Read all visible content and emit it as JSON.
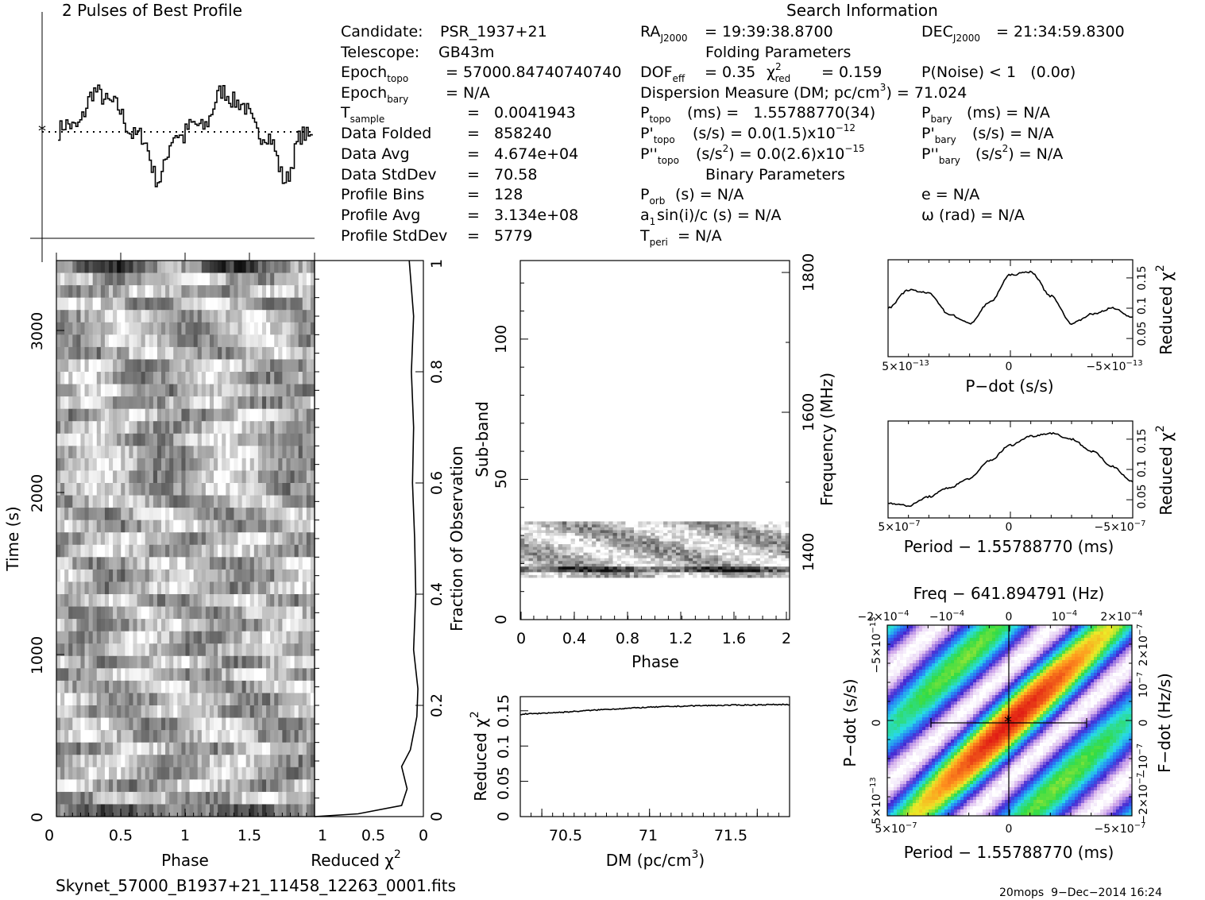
{
  "profile": {
    "title": "2 Pulses of Best Profile",
    "mean_marker": "*"
  },
  "search_info": {
    "title": "Search Information",
    "candidate_label": "Candidate:",
    "candidate": "PSR_1937+21",
    "telescope_label": "Telescope:",
    "telescope": "GB43m",
    "epoch_topo_label": "Epoch",
    "epoch_topo_sub": "topo",
    "epoch_topo": "= 57000.84740740740",
    "epoch_bary_label": "Epoch",
    "epoch_bary_sub": "bary",
    "epoch_bary": "= N/A",
    "tsample_label": "T",
    "tsample_sub": "sample",
    "tsample": "=   0.0041943",
    "data_folded_label": "Data Folded",
    "data_folded": "=   858240",
    "data_avg_label": "Data Avg",
    "data_avg": "=   4.674e+04",
    "data_std_label": "Data StdDev",
    "data_std": "=   70.58",
    "profile_bins_label": "Profile Bins",
    "profile_bins": "=   128",
    "profile_avg_label": "Profile Avg",
    "profile_avg": "=   3.134e+08",
    "profile_std_label": "Profile StdDev",
    "profile_std": "=   5779",
    "ra_label": "RA",
    "ra_sub": "J2000",
    "ra": "= 19:39:38.8700",
    "dec_label": "DEC",
    "dec_sub": "J2000",
    "dec": "= 21:34:59.8300",
    "folding_title": "Folding Parameters",
    "dof_label": "DOF",
    "dof_sub": "eff",
    "dof": "= 0.35",
    "chi2_label": "χ",
    "chi2_sup": "2",
    "chi2_sub": "red",
    "chi2": "= 0.159",
    "pnoise": "P(Noise) < 1   (0.0σ)",
    "dm_line": "Dispersion Measure (DM; pc/cm",
    "dm_sup": "3",
    "dm_value": ") = 71.024",
    "ptopo_label": "P",
    "ptopo_sub": "topo",
    "ptopo": "(ms) =   1.55788770(34)",
    "pbary_label": "P",
    "pbary_sub": "bary",
    "pbary": "(ms) = N/A",
    "pdtopo_label": "P'",
    "pdtopo_sub": "topo",
    "pdtopo": "(s/s) = 0.0(1.5)x10",
    "pdtopo_exp": "−12",
    "pdbary_label": "P'",
    "pdbary_sub": "bary",
    "pdbary": "(s/s) = N/A",
    "pddtopo_label": "P''",
    "pddtopo_sub": "topo",
    "pddtopo": "(s/s",
    "pddtopo_sup": "2",
    "pddtopo_rest": ") = 0.0(2.6)x10",
    "pddtopo_exp": "−15",
    "pddbary_label": "P''",
    "pddbary_sub": "bary",
    "pddbary": "(s/s",
    "pddbary_sup": "2",
    "pddbary_rest": ") = N/A",
    "binary_title": "Binary Parameters",
    "porb_label": "P",
    "porb_sub": "orb",
    "porb": "(s) = N/A",
    "e": "e = N/A",
    "a1_label": "a",
    "a1_sub": "1",
    "a1": "sin(i)/c (s) = N/A",
    "omega": "ω (rad) = N/A",
    "tperi_label": "T",
    "tperi_sub": "peri",
    "tperi": "= N/A"
  },
  "phase_time": {
    "xlabel": "Phase",
    "ylabel": "Time (s)",
    "xticks": [
      "0",
      "0.5",
      "1",
      "1.5"
    ],
    "yticks": [
      "0",
      "1000",
      "2000",
      "3000"
    ],
    "rows": 45,
    "bins": 64
  },
  "redchi_time": {
    "xlabel": "Reduced χ",
    "xlabel_sup": "2",
    "xticks": [
      "1",
      "0.5",
      "0"
    ],
    "ylabel_right": "Fraction of Observation",
    "yticks": [
      "0",
      "0.2",
      "0.4",
      "0.6",
      "0.8",
      "1"
    ]
  },
  "subband": {
    "xlabel": "Phase",
    "ylabel": "Sub-band",
    "xticks": [
      "0",
      "0.4",
      "0.8",
      "1.2",
      "1.6",
      "2"
    ],
    "yticks": [
      "0",
      "50",
      "100"
    ],
    "ylabel_right": "Frequency (MHz)",
    "freq_ticks": [
      "1400",
      "1600",
      "1800"
    ]
  },
  "dm_plot": {
    "xlabel": "DM (pc/cm",
    "xlabel_sup": "3",
    "xlabel_end": ")",
    "ylabel": "Reduced χ",
    "ylabel_sup": "2",
    "xticks": [
      "70.5",
      "71",
      "71.5"
    ],
    "yticks": [
      "0",
      "0.05",
      "0.1",
      "0.15"
    ]
  },
  "pdot_plot": {
    "xlabel": "P−dot (s/s)",
    "ylabel": "Reduced χ",
    "ylabel_sup": "2",
    "xticks": [
      "5×10",
      "0",
      "−5×10"
    ],
    "xtick_exp": "−13",
    "yticks": [
      "0.05",
      "0.1",
      "0.15"
    ]
  },
  "period_plot": {
    "xlabel": "Period − 1.55788770 (ms)",
    "ylabel": "Reduced χ",
    "ylabel_sup": "2",
    "xticks": [
      "5×10",
      "0",
      "−5×10"
    ],
    "xtick_exp": "−7",
    "yticks": [
      "0.05",
      "0.1",
      "0.15"
    ]
  },
  "pp_plane": {
    "title": "Freq − 641.894791 (Hz)",
    "top_ticks": [
      "−2×10",
      "−10",
      "0",
      "10",
      "2×10"
    ],
    "top_exp": "−4",
    "xlabel": "Period − 1.55788770 (ms)",
    "xticks": [
      "5×10",
      "0",
      "−5×10"
    ],
    "xtick_exp": "−7",
    "ylabel": "P−dot (s/s)",
    "yticks": [
      "−5×10",
      "0",
      "5×10"
    ],
    "ytick_exp": "−13",
    "ylabel_right": "F−dot (Hz/s)",
    "right_ticks": [
      "2×10",
      "10",
      "0",
      "−10",
      "−2×10"
    ],
    "right_exp": "−7"
  },
  "footer": {
    "filename": "Skynet_57000_B1937+21_11458_12263_0001.fits",
    "stamp": "20mops  9−Dec−2014 16:24"
  },
  "chart_data": [
    {
      "type": "line",
      "title": "2 Pulses of Best Profile",
      "xlabel": "",
      "ylabel": "",
      "x_range": [
        0,
        2
      ],
      "note_mean_line": "dotted"
    },
    {
      "type": "heatmap",
      "xlabel": "Phase",
      "ylabel": "Time (s)",
      "x_range": [
        0,
        2
      ],
      "y_range": [
        0,
        3400
      ]
    },
    {
      "type": "line",
      "xlabel": "Reduced χ2",
      "ylabel": "Fraction of Observation",
      "x_range": [
        1,
        0
      ],
      "y_range": [
        0,
        1
      ],
      "points": [
        [
          1.0,
          0.0
        ],
        [
          0.6,
          0.005
        ],
        [
          0.2,
          0.02
        ],
        [
          0.15,
          0.05
        ],
        [
          0.2,
          0.09
        ],
        [
          0.12,
          0.12
        ],
        [
          0.06,
          0.18
        ],
        [
          0.05,
          0.23
        ],
        [
          0.09,
          0.3
        ],
        [
          0.07,
          0.4
        ],
        [
          0.08,
          0.5
        ],
        [
          0.1,
          0.6
        ],
        [
          0.09,
          0.7
        ],
        [
          0.11,
          0.8
        ],
        [
          0.09,
          0.9
        ],
        [
          0.13,
          1.0
        ]
      ]
    },
    {
      "type": "heatmap",
      "xlabel": "Phase",
      "ylabel": "Sub-band",
      "x_range": [
        0,
        2
      ],
      "y_range": [
        0,
        128
      ],
      "active_subbands": [
        15,
        35
      ],
      "freq_axis": {
        "label": "Frequency (MHz)",
        "ticks": [
          1400,
          1600,
          1800
        ]
      }
    },
    {
      "type": "line",
      "xlabel": "DM (pc/cm3)",
      "ylabel": "Reduced χ2",
      "x_range": [
        70.4,
        71.65
      ],
      "y_range": [
        0,
        0.17
      ],
      "x": [
        70.4,
        70.6,
        70.8,
        71.0,
        71.2,
        71.4,
        71.65
      ],
      "y": [
        0.145,
        0.148,
        0.152,
        0.155,
        0.157,
        0.158,
        0.159
      ]
    },
    {
      "type": "line",
      "xlabel": "P-dot (s/s)",
      "ylabel": "Reduced χ2",
      "x_range": [
        6e-13,
        -6e-13
      ],
      "y_range": [
        0.02,
        0.18
      ],
      "x": [
        6e-13,
        5e-13,
        4e-13,
        3e-13,
        2e-13,
        1e-13,
        0,
        -1e-13,
        -2e-13,
        -3e-13,
        -4e-13,
        -5e-13,
        -6e-13
      ],
      "y": [
        0.1,
        0.13,
        0.125,
        0.09,
        0.075,
        0.11,
        0.155,
        0.16,
        0.12,
        0.075,
        0.09,
        0.1,
        0.085
      ]
    },
    {
      "type": "line",
      "xlabel": "Period − 1.55788770 (ms)",
      "ylabel": "Reduced χ2",
      "x_range": [
        6e-07,
        -6e-07
      ],
      "y_range": [
        0.02,
        0.18
      ],
      "x": [
        6e-07,
        5e-07,
        4e-07,
        3e-07,
        2e-07,
        1e-07,
        0,
        -1e-07,
        -2e-07,
        -3e-07,
        -4e-07,
        -5e-07,
        -6e-07
      ],
      "y": [
        0.045,
        0.04,
        0.055,
        0.07,
        0.085,
        0.115,
        0.14,
        0.155,
        0.16,
        0.15,
        0.13,
        0.105,
        0.08
      ]
    },
    {
      "type": "heatmap",
      "title": "Freq − 641.894791 (Hz)",
      "xlabel": "Period − 1.55788770 (ms)",
      "ylabel": "P−dot (s/s)",
      "x_range": [
        6e-07,
        -6e-07
      ],
      "y_range": [
        7e-13,
        -7e-13
      ],
      "best": [
        0,
        0
      ],
      "errorbar_period": [
        -3.5e-07,
        3.5e-07
      ]
    }
  ]
}
